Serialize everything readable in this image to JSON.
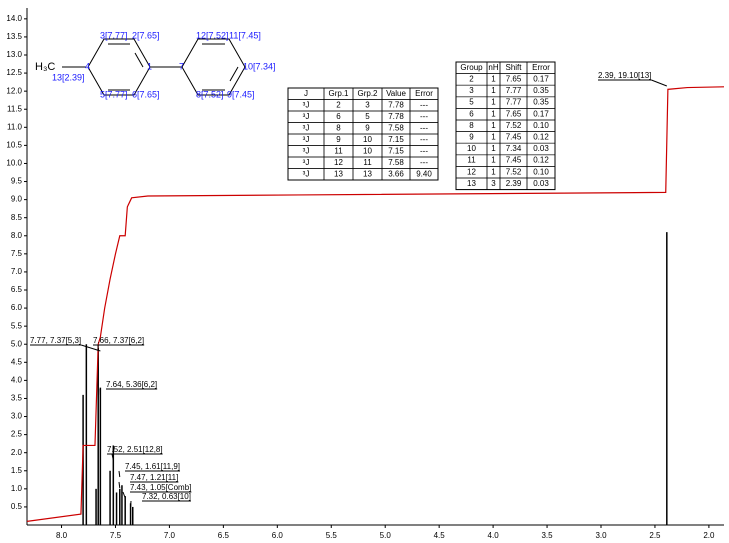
{
  "chart_data": {
    "type": "spectrum",
    "xlim": [
      8.32,
      1.86
    ],
    "ylim": [
      0,
      14.3
    ],
    "xticks": [
      {
        "value": 8,
        "label": "8.0"
      },
      7.5,
      {
        "value": 7,
        "label": "7.0"
      },
      6.5,
      {
        "value": 6,
        "label": "6.0"
      },
      5.5,
      {
        "value": 5,
        "label": "5.0"
      },
      4.5,
      {
        "value": 4,
        "label": "4.0"
      },
      3.5,
      {
        "value": 3,
        "label": "3.0"
      },
      2.5,
      {
        "value": 2,
        "label": "2.0"
      }
    ],
    "yticks": [
      0.5,
      {
        "value": 1,
        "label": "1.0"
      },
      1.5,
      {
        "value": 2,
        "label": "2.0"
      },
      2.5,
      {
        "value": 3,
        "label": "3.0"
      },
      3.5,
      {
        "value": 4,
        "label": "4.0"
      },
      4.5,
      {
        "value": 5,
        "label": "5.0"
      },
      5.5,
      {
        "value": 6,
        "label": "6.0"
      },
      6.5,
      {
        "value": 7,
        "label": "7.0"
      },
      7.5,
      {
        "value": 8,
        "label": "8.0"
      },
      8.5,
      {
        "value": 9,
        "label": "9.0"
      },
      9.5,
      {
        "value": 10,
        "label": "10.0"
      },
      10.5,
      {
        "value": 11,
        "label": "11.0"
      },
      11.5,
      {
        "value": 12,
        "label": "12.0"
      },
      12.5,
      {
        "value": 13,
        "label": "13.0"
      },
      13.5,
      {
        "value": 14,
        "label": "14.0"
      }
    ],
    "peaks": {
      "color": "#000000",
      "x": [
        7.8,
        7.77,
        7.68,
        7.66,
        7.64,
        7.55,
        7.52,
        7.49,
        7.46,
        7.44,
        7.41,
        7.36,
        7.34,
        2.39
      ],
      "values": [
        3.6,
        5.0,
        1.0,
        4.9,
        3.8,
        1.5,
        2.2,
        0.9,
        1.0,
        1.1,
        0.8,
        0.6,
        0.5,
        8.1
      ]
    },
    "integral": {
      "color": "#cc0000",
      "x": [
        8.32,
        7.82,
        7.8,
        7.69,
        7.66,
        7.64,
        7.6,
        7.55,
        7.5,
        7.46,
        7.41,
        7.39,
        7.35,
        7.2,
        5.8,
        2.4,
        2.38,
        2.2,
        1.86
      ],
      "values": [
        0.1,
        0.3,
        2.2,
        2.2,
        5.0,
        5.2,
        6.0,
        6.8,
        7.5,
        8.0,
        8.0,
        8.8,
        9.05,
        9.1,
        9.13,
        9.2,
        12.05,
        12.1,
        12.12
      ]
    },
    "annotations": [
      "7.77, 7.37[5,3]",
      "7.66, 7.37[6,2]",
      "7.64, 5.36[6,2]",
      "7.52, 2.51[12,8]",
      "7.45, 1.61[11,9]",
      "7.47, 1.21[11]",
      "7.43, 1.05[Comb]",
      "7.32, 0.63[10]",
      "2.39, 19.10[13]"
    ]
  },
  "molecule": {
    "labels": [
      "H₃C",
      "13[2.39]",
      "4",
      "3[7.77]",
      "2[7.65]",
      "1",
      "5[7.77]",
      "6[7.65]",
      "7",
      "12[7.52]",
      "11[7.45]",
      "10[7.34]",
      "8[7.52]",
      "9[7.45]"
    ]
  },
  "tables": {
    "j": {
      "header": [
        "J",
        "Grp.1",
        "Grp.2",
        "Value",
        "Error"
      ],
      "rows": [
        [
          "³J",
          "2",
          "3",
          "7.78",
          "---"
        ],
        [
          "³J",
          "6",
          "5",
          "7.78",
          "---"
        ],
        [
          "³J",
          "8",
          "9",
          "7.58",
          "---"
        ],
        [
          "³J",
          "9",
          "10",
          "7.15",
          "---"
        ],
        [
          "³J",
          "11",
          "10",
          "7.15",
          "---"
        ],
        [
          "³J",
          "12",
          "11",
          "7.58",
          "---"
        ],
        [
          "³J",
          "13",
          "13",
          "3.66",
          "9.40"
        ]
      ]
    },
    "group": {
      "header": [
        "Group",
        "nH",
        "Shift",
        "Error"
      ],
      "rows": [
        [
          "2",
          "1",
          "7.65",
          "0.17"
        ],
        [
          "3",
          "1",
          "7.77",
          "0.35"
        ],
        [
          "5",
          "1",
          "7.77",
          "0.35"
        ],
        [
          "6",
          "1",
          "7.65",
          "0.17"
        ],
        [
          "8",
          "1",
          "7.52",
          "0.10"
        ],
        [
          "9",
          "1",
          "7.45",
          "0.12"
        ],
        [
          "10",
          "1",
          "7.34",
          "0.03"
        ],
        [
          "11",
          "1",
          "7.45",
          "0.12"
        ],
        [
          "12",
          "1",
          "7.52",
          "0.10"
        ],
        [
          "13",
          "3",
          "2.39",
          "0.03"
        ]
      ]
    }
  }
}
